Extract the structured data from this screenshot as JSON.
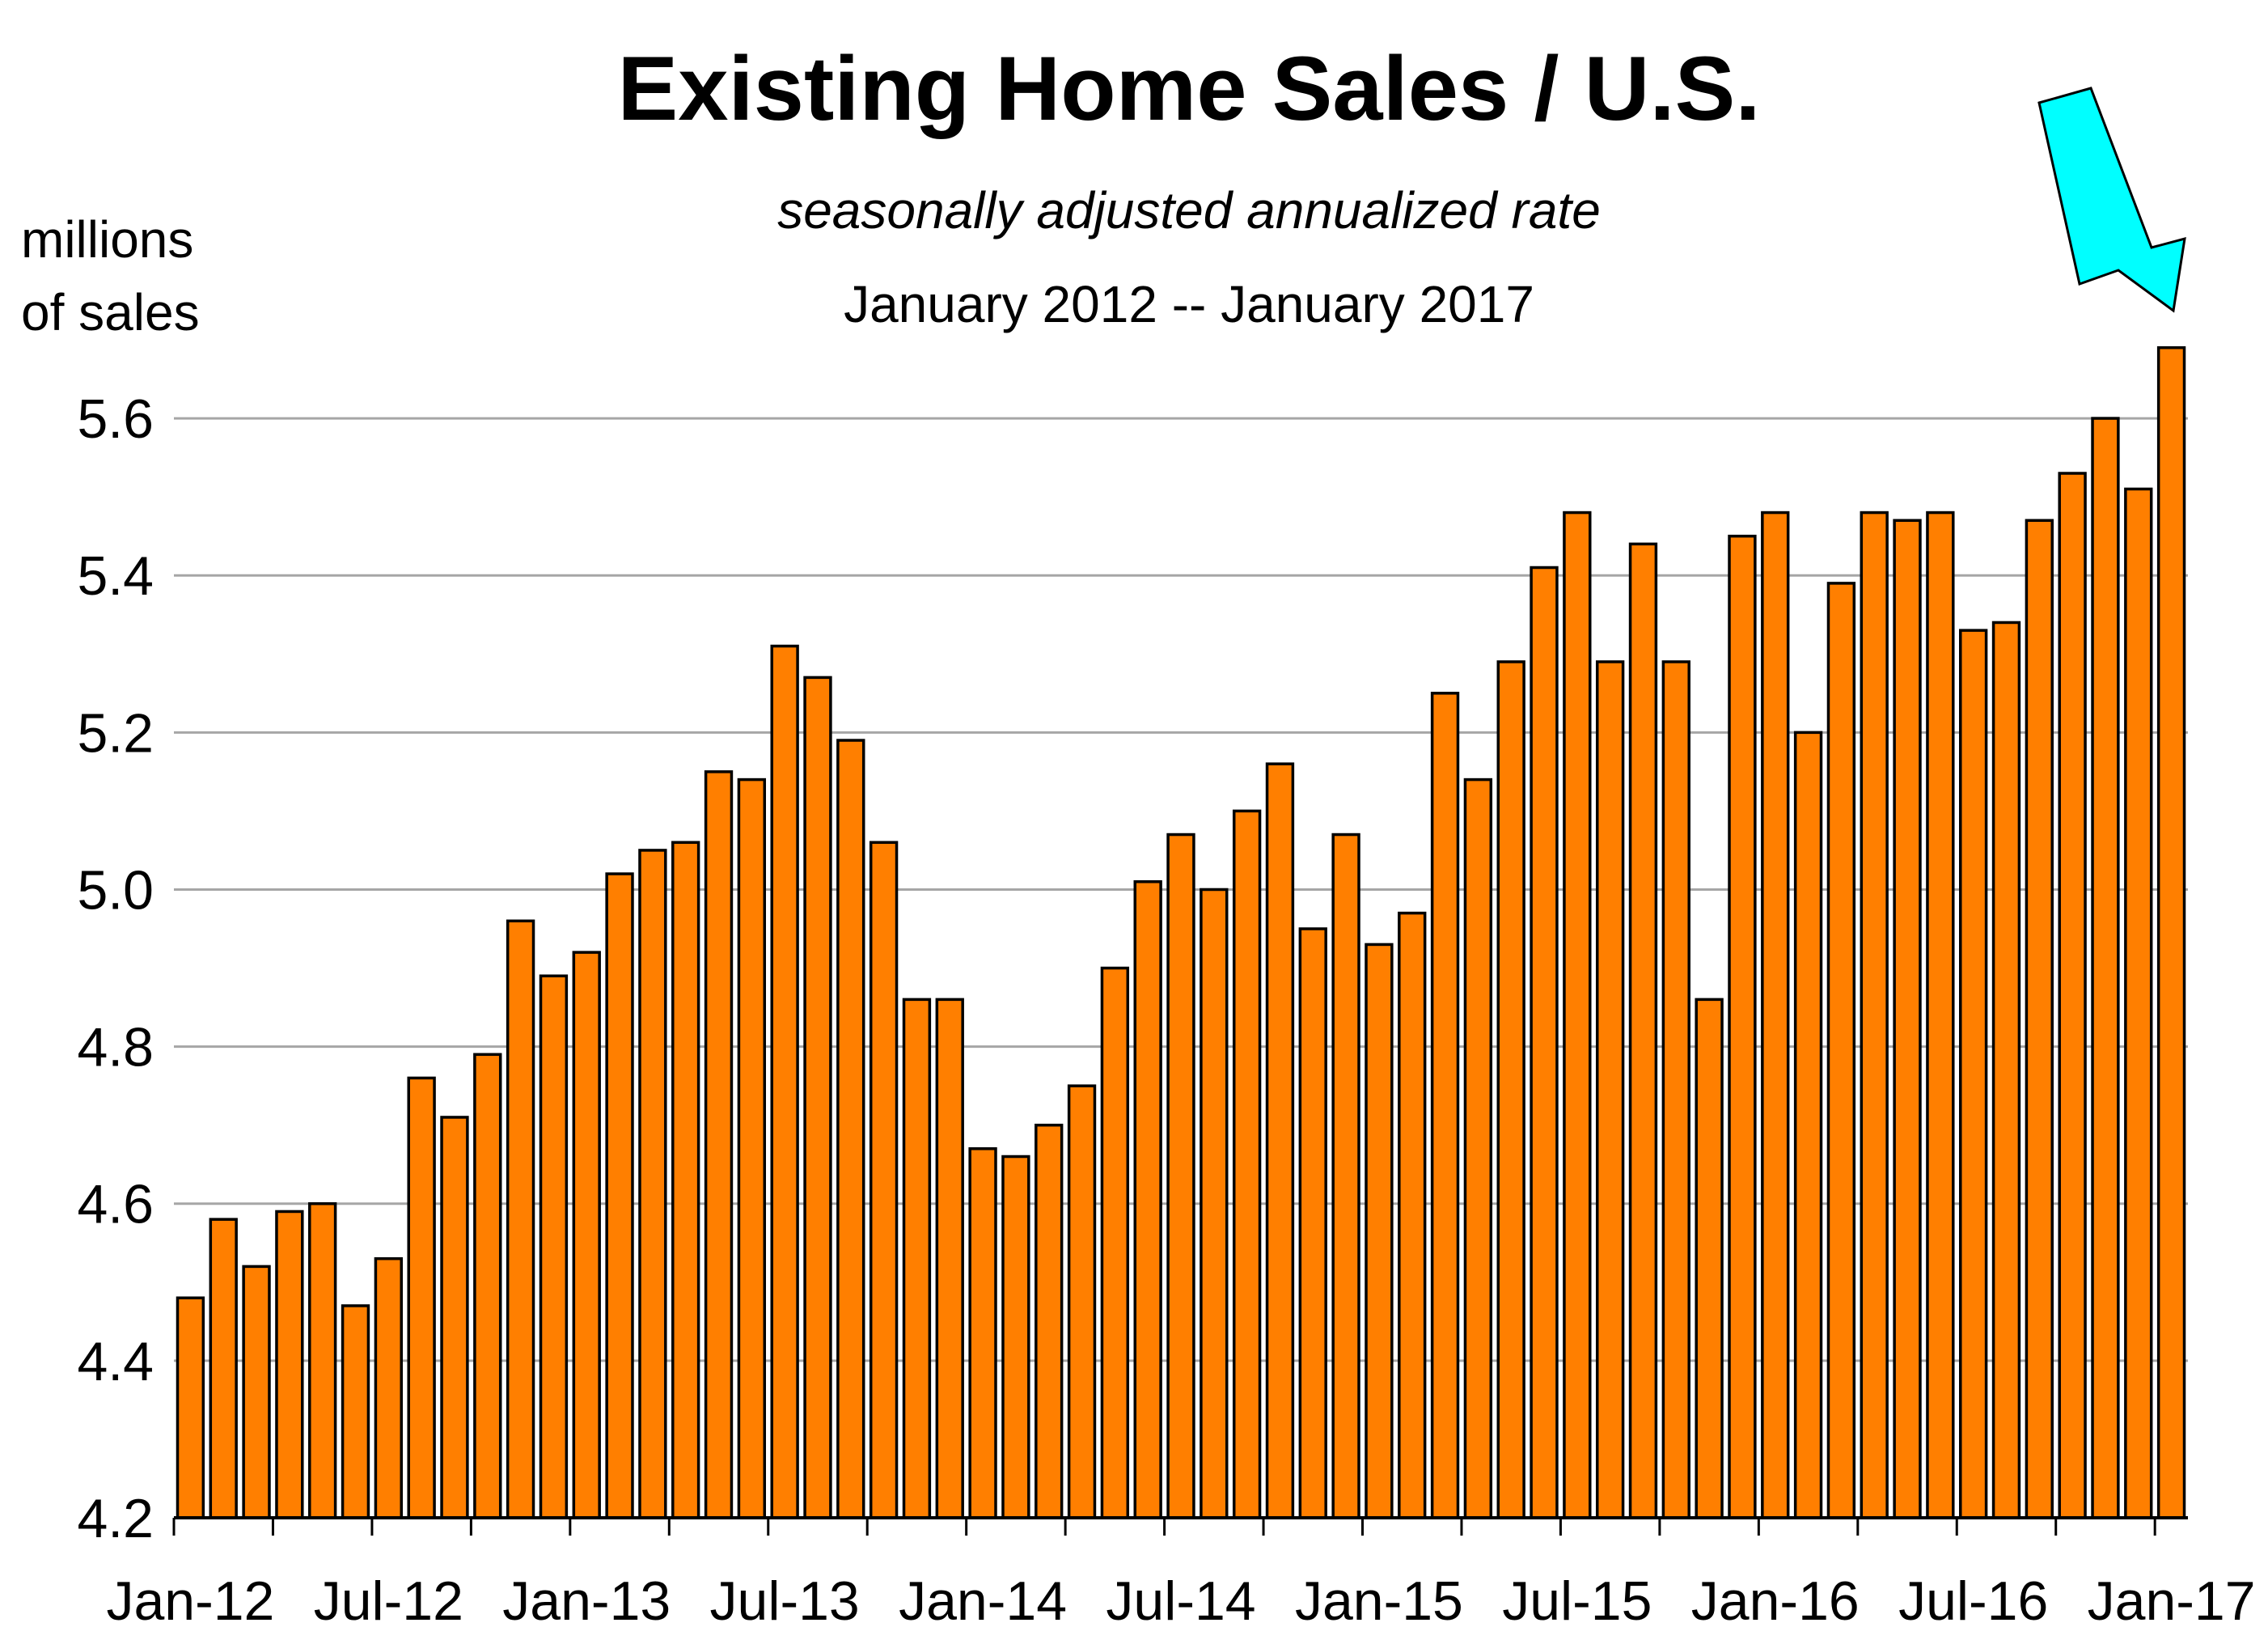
{
  "chart_data": {
    "type": "bar",
    "title": "Existing Home Sales / U.S.",
    "subtitle": "seasonally adjusted annualized rate",
    "date_range": "January 2012 -- January 2017",
    "ylabel_lines": [
      "millions",
      "of sales"
    ],
    "xlabel": "",
    "ylim": [
      4.2,
      5.7
    ],
    "yticks": [
      4.2,
      4.4,
      4.6,
      4.8,
      5.0,
      5.2,
      5.4,
      5.6
    ],
    "ytick_labels": [
      "4.2",
      "4.4",
      "4.6",
      "4.8",
      "5.0",
      "5.2",
      "5.4",
      "5.6"
    ],
    "xtick_labels": [
      "Jan-12",
      "Jul-12",
      "Jan-13",
      "Jul-13",
      "Jan-14",
      "Jul-14",
      "Jan-15",
      "Jul-15",
      "Jan-16",
      "Jul-16",
      "Jan-17"
    ],
    "grid": "horizontal",
    "bar_color": "#ff7f00",
    "bar_edge_color": "#000000",
    "highlight_arrow_color": "#00ffff",
    "categories": [
      "Jan-12",
      "Feb-12",
      "Mar-12",
      "Apr-12",
      "May-12",
      "Jun-12",
      "Jul-12",
      "Aug-12",
      "Sep-12",
      "Oct-12",
      "Nov-12",
      "Dec-12",
      "Jan-13",
      "Feb-13",
      "Mar-13",
      "Apr-13",
      "May-13",
      "Jun-13",
      "Jul-13",
      "Aug-13",
      "Sep-13",
      "Oct-13",
      "Nov-13",
      "Dec-13",
      "Jan-14",
      "Feb-14",
      "Mar-14",
      "Apr-14",
      "May-14",
      "Jun-14",
      "Jul-14",
      "Aug-14",
      "Sep-14",
      "Oct-14",
      "Nov-14",
      "Dec-14",
      "Jan-15",
      "Feb-15",
      "Mar-15",
      "Apr-15",
      "May-15",
      "Jun-15",
      "Jul-15",
      "Aug-15",
      "Sep-15",
      "Oct-15",
      "Nov-15",
      "Dec-15",
      "Jan-16",
      "Feb-16",
      "Mar-16",
      "Apr-16",
      "May-16",
      "Jun-16",
      "Jul-16",
      "Aug-16",
      "Sep-16",
      "Oct-16",
      "Nov-16",
      "Dec-16",
      "Jan-17"
    ],
    "values": [
      4.48,
      4.58,
      4.52,
      4.59,
      4.6,
      4.47,
      4.53,
      4.76,
      4.71,
      4.79,
      4.96,
      4.89,
      4.92,
      5.02,
      5.05,
      5.06,
      5.15,
      5.14,
      5.31,
      5.27,
      5.19,
      5.06,
      4.86,
      4.86,
      4.67,
      4.66,
      4.7,
      4.75,
      4.9,
      5.01,
      5.07,
      5.0,
      5.1,
      5.16,
      4.95,
      5.07,
      4.93,
      4.97,
      5.25,
      5.14,
      5.29,
      5.41,
      5.48,
      5.29,
      5.44,
      5.29,
      4.86,
      5.45,
      5.48,
      5.2,
      5.39,
      5.48,
      5.47,
      5.48,
      5.33,
      5.34,
      5.47,
      5.53,
      5.6,
      5.51,
      5.69
    ]
  }
}
